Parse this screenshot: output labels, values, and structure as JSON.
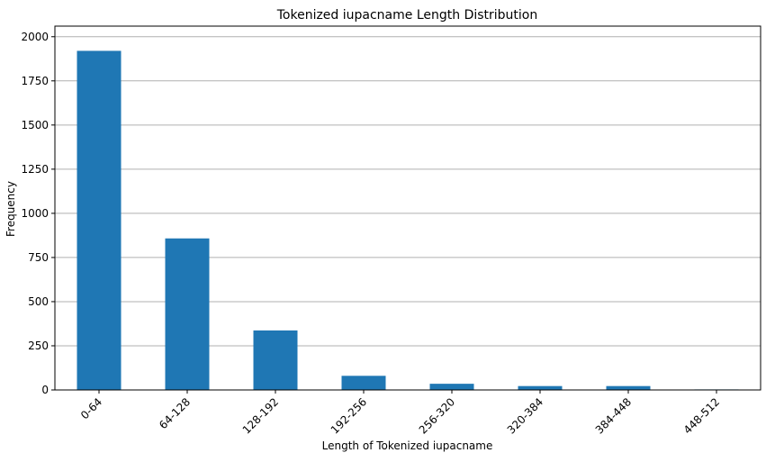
{
  "chart_data": {
    "type": "bar",
    "title": "Tokenized iupacname Length Distribution",
    "xlabel": "Length of Tokenized iupacname",
    "ylabel": "Frequency",
    "categories": [
      "0-64",
      "64-128",
      "128-192",
      "192-256",
      "256-320",
      "320-384",
      "384-448",
      "448-512"
    ],
    "values": [
      1920,
      858,
      337,
      80,
      35,
      22,
      22,
      3
    ],
    "ylim": [
      0,
      2060
    ],
    "yticks": [
      0,
      250,
      500,
      750,
      1000,
      1250,
      1500,
      1750,
      2000
    ],
    "grid": "y",
    "legend": "none",
    "bar_color": "#1f77b4",
    "grid_color": "#b0b0b0",
    "x_tick_rotation": 45
  }
}
